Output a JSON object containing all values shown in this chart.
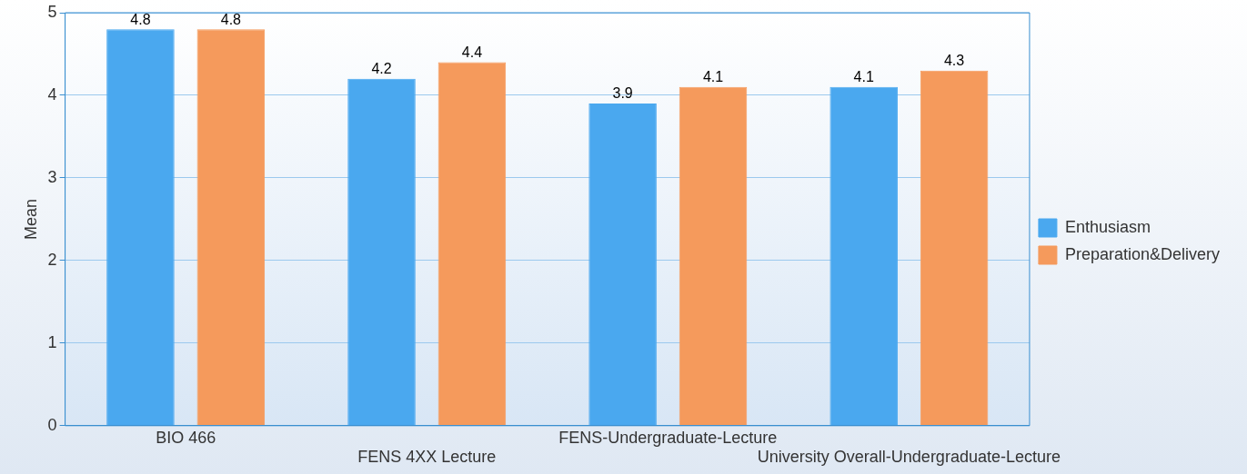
{
  "chart_data": {
    "type": "bar",
    "ylabel": "Mean",
    "categories": [
      "BIO 466",
      "FENS 4XX Lecture",
      "FENS-Undergraduate-Lecture",
      "University Overall-Undergraduate-Lecture"
    ],
    "series": [
      {
        "name": "Enthusiasm",
        "color": "#4aa8ef",
        "values": [
          4.8,
          4.2,
          3.9,
          4.1
        ]
      },
      {
        "name": "Preparation&Delivery",
        "color": "#f59a5c",
        "values": [
          4.8,
          4.4,
          4.1,
          4.3
        ]
      }
    ],
    "ylim": [
      0,
      5
    ],
    "yticks": [
      0,
      1,
      2,
      3,
      4,
      5
    ],
    "grid": "y",
    "legend": "right",
    "data_labels": true
  }
}
